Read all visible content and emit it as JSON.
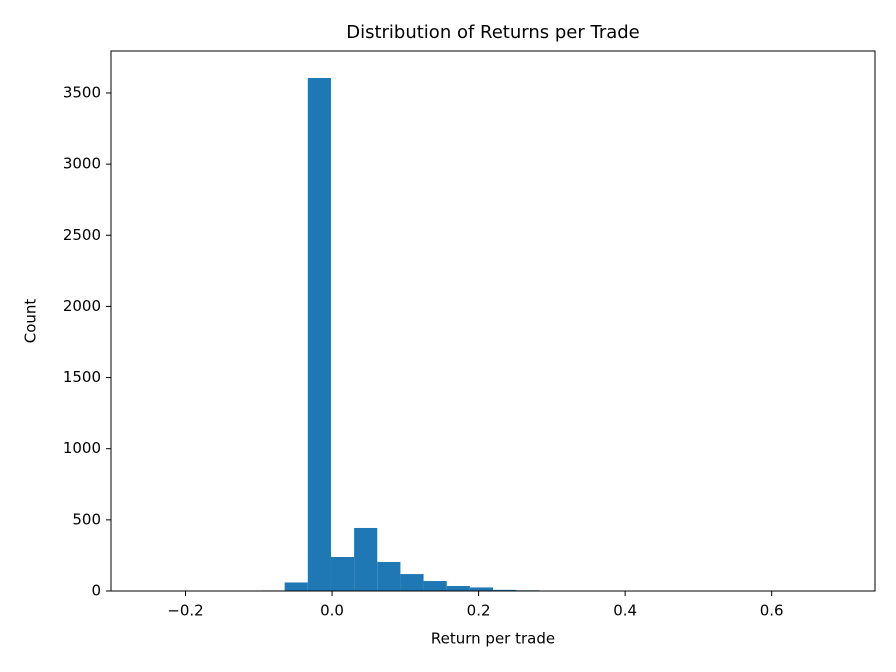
{
  "chart_data": {
    "type": "histogram",
    "title": "Distribution of Returns per Trade",
    "x_label": "Return per trade",
    "y_label": "Count",
    "color": "#1f77b4",
    "bins": [
      -0.2543,
      -0.2227,
      -0.1911,
      -0.1595,
      -0.1279,
      -0.0963,
      -0.0647,
      -0.0331,
      -0.0015,
      0.0301,
      0.0617,
      0.0933,
      0.1249,
      0.1565,
      0.1881,
      0.2197,
      0.2513,
      0.2829,
      0.3145,
      0.3461,
      0.3777,
      0.4093,
      0.4409,
      0.4725,
      0.5041,
      0.5357,
      0.5673,
      0.5989,
      0.6305,
      0.6621,
      0.6937
    ],
    "counts": [
      1,
      0,
      1,
      1,
      2,
      4,
      60,
      3605,
      239,
      443,
      204,
      119,
      70,
      35,
      25,
      8,
      5,
      3,
      2,
      1,
      1,
      1,
      1,
      0,
      1,
      0,
      1,
      1,
      0,
      1
    ],
    "xlim": [
      -0.3017,
      0.741
    ],
    "ylim": [
      0,
      3795
    ],
    "xticks": [
      {
        "value": -0.2,
        "label": "−0.2"
      },
      {
        "value": 0,
        "label": "0.0"
      },
      0.2,
      0.4,
      0.6
    ],
    "yticks": [
      0,
      500,
      1000,
      1500,
      2000,
      2500,
      3000,
      3500
    ]
  }
}
